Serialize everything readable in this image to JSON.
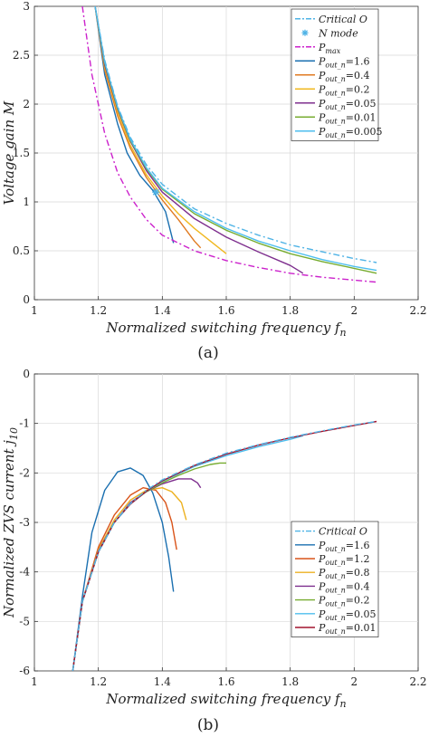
{
  "chart_data": [
    {
      "type": "line",
      "caption": "(a)",
      "xlabel": "Normalized switching frequency f",
      "xlabel_sub": "n",
      "ylabel": "Voltage gain M",
      "xlim": [
        1,
        2.2
      ],
      "ylim": [
        0,
        3
      ],
      "xticks": [
        "1",
        "1.2",
        "1.4",
        "1.6",
        "1.8",
        "2",
        "2.2"
      ],
      "yticks": [
        "0",
        "0.5",
        "1",
        "1.5",
        "2",
        "2.5",
        "3"
      ],
      "grid": true,
      "legend_position": "top-right",
      "series": [
        {
          "name": "Critical O",
          "style": "dashdot",
          "color": "#4fb3e6",
          "x": [
            1.19,
            1.22,
            1.26,
            1.3,
            1.35,
            1.4,
            1.5,
            1.6,
            1.7,
            1.8,
            1.9,
            2.0,
            2.07
          ],
          "y": [
            3.0,
            2.45,
            1.98,
            1.66,
            1.38,
            1.18,
            0.93,
            0.78,
            0.66,
            0.56,
            0.49,
            0.42,
            0.38
          ]
        },
        {
          "name": "N mode",
          "style": "marker",
          "color": "#4fb3e6",
          "x": [
            1.38
          ],
          "y": [
            1.1
          ]
        },
        {
          "name": "P",
          "name_sub": "max",
          "style": "dashdot",
          "color": "#cc22cc",
          "x": [
            1.15,
            1.18,
            1.22,
            1.26,
            1.3,
            1.35,
            1.4,
            1.5,
            1.6,
            1.7,
            1.8,
            1.9,
            2.0,
            2.07
          ],
          "y": [
            3.0,
            2.3,
            1.7,
            1.3,
            1.05,
            0.82,
            0.66,
            0.5,
            0.4,
            0.33,
            0.27,
            0.23,
            0.2,
            0.18
          ]
        },
        {
          "name": "P",
          "name_sub": "out_n",
          "name_suffix": "=1.6",
          "style": "solid",
          "color": "#1a6fb0",
          "x": [
            1.19,
            1.22,
            1.26,
            1.29,
            1.33,
            1.37,
            1.41,
            1.435
          ],
          "y": [
            3.0,
            2.3,
            1.8,
            1.5,
            1.27,
            1.12,
            0.9,
            0.58
          ]
        },
        {
          "name": "P",
          "name_sub": "out_n",
          "name_suffix": "=0.4",
          "style": "solid",
          "color": "#e07a20",
          "x": [
            1.19,
            1.22,
            1.26,
            1.3,
            1.35,
            1.4,
            1.45,
            1.5,
            1.52
          ],
          "y": [
            3.0,
            2.35,
            1.88,
            1.55,
            1.25,
            1.02,
            0.82,
            0.6,
            0.53
          ]
        },
        {
          "name": "P",
          "name_sub": "out_n",
          "name_suffix": "=0.2",
          "style": "solid",
          "color": "#f0b820",
          "x": [
            1.19,
            1.22,
            1.26,
            1.3,
            1.35,
            1.4,
            1.45,
            1.5,
            1.55,
            1.6
          ],
          "y": [
            3.0,
            2.38,
            1.92,
            1.58,
            1.28,
            1.06,
            0.88,
            0.73,
            0.6,
            0.47
          ]
        },
        {
          "name": "P",
          "name_sub": "out_n",
          "name_suffix": "=0.05",
          "style": "solid",
          "color": "#7e2f8e",
          "x": [
            1.19,
            1.22,
            1.26,
            1.3,
            1.35,
            1.4,
            1.5,
            1.6,
            1.7,
            1.8,
            1.84
          ],
          "y": [
            3.0,
            2.4,
            1.95,
            1.62,
            1.32,
            1.1,
            0.83,
            0.64,
            0.49,
            0.35,
            0.27
          ]
        },
        {
          "name": "P",
          "name_sub": "out_n",
          "name_suffix": "=0.01",
          "style": "solid",
          "color": "#77ac30",
          "x": [
            1.19,
            1.22,
            1.26,
            1.3,
            1.35,
            1.4,
            1.5,
            1.6,
            1.7,
            1.8,
            1.9,
            2.0,
            2.07
          ],
          "y": [
            3.0,
            2.42,
            1.96,
            1.63,
            1.34,
            1.13,
            0.88,
            0.71,
            0.58,
            0.47,
            0.39,
            0.32,
            0.27
          ]
        },
        {
          "name": "P",
          "name_sub": "out_n",
          "name_suffix": "=0.005",
          "style": "solid",
          "color": "#4dbeee",
          "x": [
            1.19,
            1.22,
            1.26,
            1.3,
            1.35,
            1.4,
            1.5,
            1.6,
            1.7,
            1.8,
            1.9,
            2.0,
            2.07
          ],
          "y": [
            3.0,
            2.43,
            1.97,
            1.64,
            1.35,
            1.14,
            0.9,
            0.73,
            0.6,
            0.5,
            0.41,
            0.34,
            0.3
          ]
        }
      ]
    },
    {
      "type": "line",
      "caption": "(b)",
      "xlabel": "Normalized switching frequency f",
      "xlabel_sub": "n",
      "ylabel": "Normalized ZVS current j",
      "ylabel_sub": "10",
      "xlim": [
        1,
        2.2
      ],
      "ylim": [
        -6,
        0
      ],
      "xticks": [
        "1",
        "1.2",
        "1.4",
        "1.6",
        "1.8",
        "2",
        "2.2"
      ],
      "yticks": [
        "-6",
        "-5",
        "-4",
        "-3",
        "-2",
        "-1",
        "0"
      ],
      "grid": true,
      "legend_position": "lower-right",
      "series": [
        {
          "name": "Critical O",
          "style": "dashdot",
          "color": "#4fb3e6",
          "x": [
            1.12,
            1.15,
            1.2,
            1.25,
            1.3,
            1.35,
            1.4,
            1.5,
            1.6,
            1.7,
            1.8,
            1.9,
            2.0,
            2.07
          ],
          "y": [
            -6.0,
            -4.6,
            -3.6,
            -3.0,
            -2.62,
            -2.35,
            -2.14,
            -1.84,
            -1.6,
            -1.43,
            -1.28,
            -1.15,
            -1.03,
            -0.96
          ]
        },
        {
          "name": "P",
          "name_sub": "out_n",
          "name_suffix": "=1.6",
          "style": "solid",
          "color": "#1a6fb0",
          "x": [
            1.12,
            1.15,
            1.18,
            1.22,
            1.26,
            1.3,
            1.34,
            1.37,
            1.4,
            1.42,
            1.435
          ],
          "y": [
            -6.0,
            -4.5,
            -3.2,
            -2.35,
            -1.98,
            -1.9,
            -2.05,
            -2.4,
            -3.0,
            -3.7,
            -4.4
          ]
        },
        {
          "name": "P",
          "name_sub": "out_n",
          "name_suffix": "=1.2",
          "style": "solid",
          "color": "#d95319",
          "x": [
            1.12,
            1.15,
            1.2,
            1.25,
            1.3,
            1.34,
            1.38,
            1.41,
            1.43,
            1.445
          ],
          "y": [
            -6.0,
            -4.6,
            -3.5,
            -2.85,
            -2.45,
            -2.3,
            -2.35,
            -2.6,
            -3.0,
            -3.55
          ]
        },
        {
          "name": "P",
          "name_sub": "out_n",
          "name_suffix": "=0.8",
          "style": "solid",
          "color": "#edb120",
          "x": [
            1.12,
            1.15,
            1.2,
            1.25,
            1.3,
            1.35,
            1.4,
            1.43,
            1.46,
            1.475
          ],
          "y": [
            -6.0,
            -4.6,
            -3.55,
            -2.95,
            -2.55,
            -2.35,
            -2.3,
            -2.38,
            -2.6,
            -2.95
          ]
        },
        {
          "name": "P",
          "name_sub": "out_n",
          "name_suffix": "=0.4",
          "style": "solid",
          "color": "#7e2f8e",
          "x": [
            1.12,
            1.15,
            1.2,
            1.25,
            1.3,
            1.35,
            1.4,
            1.45,
            1.49,
            1.51,
            1.52
          ],
          "y": [
            -6.0,
            -4.6,
            -3.58,
            -3.0,
            -2.6,
            -2.38,
            -2.22,
            -2.12,
            -2.12,
            -2.2,
            -2.3
          ]
        },
        {
          "name": "P",
          "name_sub": "out_n",
          "name_suffix": "=0.2",
          "style": "solid",
          "color": "#77ac30",
          "x": [
            1.12,
            1.15,
            1.2,
            1.25,
            1.3,
            1.35,
            1.4,
            1.45,
            1.5,
            1.55,
            1.58,
            1.6
          ],
          "y": [
            -6.0,
            -4.6,
            -3.6,
            -3.0,
            -2.62,
            -2.38,
            -2.2,
            -2.05,
            -1.92,
            -1.83,
            -1.8,
            -1.8
          ]
        },
        {
          "name": "P",
          "name_sub": "out_n",
          "name_suffix": "=0.05",
          "style": "solid",
          "color": "#4dbeee",
          "x": [
            1.12,
            1.15,
            1.2,
            1.25,
            1.3,
            1.35,
            1.4,
            1.5,
            1.6,
            1.7,
            1.8,
            1.84
          ],
          "y": [
            -6.0,
            -4.6,
            -3.6,
            -3.0,
            -2.63,
            -2.37,
            -2.17,
            -1.87,
            -1.65,
            -1.47,
            -1.32,
            -1.25
          ]
        },
        {
          "name": "P",
          "name_sub": "out_n",
          "name_suffix": "=0.01",
          "style": "solid",
          "color": "#a2142f",
          "x": [
            1.12,
            1.15,
            1.2,
            1.25,
            1.3,
            1.35,
            1.4,
            1.5,
            1.6,
            1.7,
            1.8,
            1.9,
            2.0,
            2.07
          ],
          "y": [
            -6.0,
            -4.6,
            -3.6,
            -3.0,
            -2.63,
            -2.37,
            -2.16,
            -1.85,
            -1.62,
            -1.44,
            -1.29,
            -1.16,
            -1.04,
            -0.96
          ]
        }
      ]
    }
  ]
}
